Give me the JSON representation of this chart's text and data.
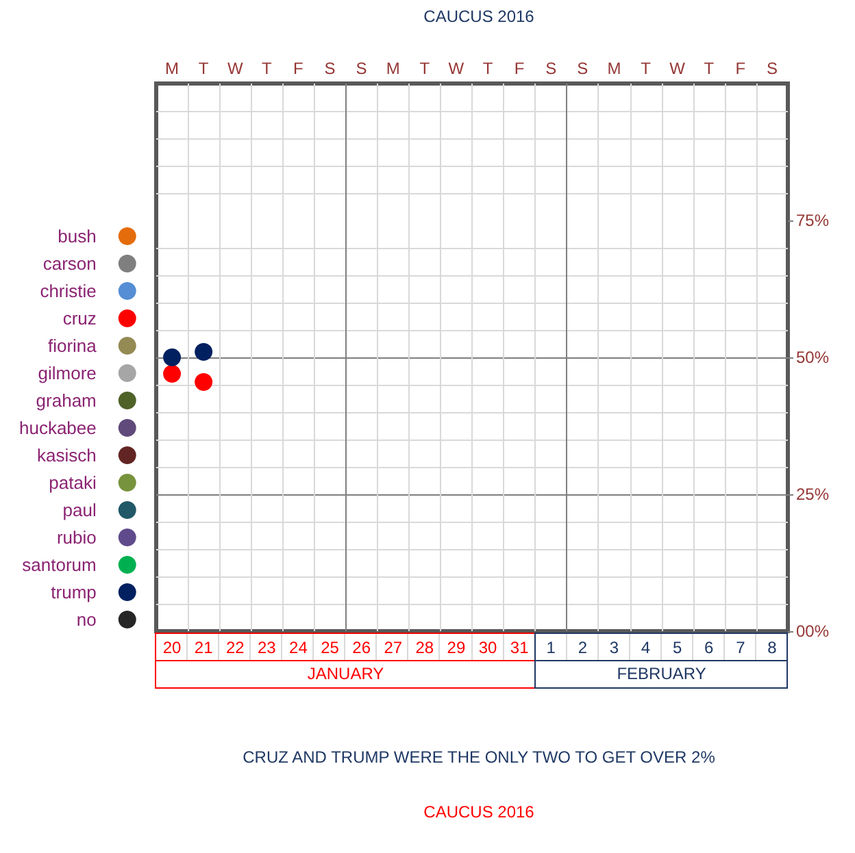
{
  "chart_data": {
    "type": "scatter",
    "title": "CAUCUS 2016",
    "x": [
      "2016-01-20",
      "2016-01-21"
    ],
    "series": [
      {
        "name": "bush",
        "color": "#e46c0a",
        "values": [
          null,
          null
        ]
      },
      {
        "name": "carson",
        "color": "#7f7f7f",
        "values": [
          null,
          null
        ]
      },
      {
        "name": "christie",
        "color": "#558ed5",
        "values": [
          null,
          null
        ]
      },
      {
        "name": "cruz",
        "color": "#ff0000",
        "values": [
          47,
          45.5
        ]
      },
      {
        "name": "fiorina",
        "color": "#948a54",
        "values": [
          null,
          null
        ]
      },
      {
        "name": "gilmore",
        "color": "#a6a6a6",
        "values": [
          null,
          null
        ]
      },
      {
        "name": "graham",
        "color": "#4f6228",
        "values": [
          null,
          null
        ]
      },
      {
        "name": "huckabee",
        "color": "#604a7b",
        "values": [
          null,
          null
        ]
      },
      {
        "name": "kasisch",
        "color": "#632523",
        "values": [
          null,
          null
        ]
      },
      {
        "name": "pataki",
        "color": "#77933c",
        "values": [
          null,
          null
        ]
      },
      {
        "name": "paul",
        "color": "#215968",
        "values": [
          null,
          null
        ]
      },
      {
        "name": "rubio",
        "color": "#5f4b8b",
        "values": [
          null,
          null
        ]
      },
      {
        "name": "santorum",
        "color": "#00b050",
        "values": [
          null,
          null
        ]
      },
      {
        "name": "trump",
        "color": "#002060",
        "values": [
          50,
          51
        ]
      },
      {
        "name": "no",
        "color": "#262626",
        "values": [
          null,
          null
        ]
      }
    ],
    "xlim": [
      "2016-01-19T12:00",
      "2016-02-08T12:00"
    ],
    "xticks": [
      {
        "value": "2016-01-20",
        "label": "20"
      },
      {
        "value": "2016-01-21",
        "label": "21"
      },
      {
        "value": "2016-01-22",
        "label": "22"
      },
      {
        "value": "2016-01-23",
        "label": "23"
      },
      {
        "value": "2016-01-24",
        "label": "24"
      },
      {
        "value": "2016-01-25",
        "label": "25"
      },
      {
        "value": "2016-01-26",
        "label": "26"
      },
      {
        "value": "2016-01-27",
        "label": "27"
      },
      {
        "value": "2016-01-28",
        "label": "28"
      },
      {
        "value": "2016-01-29",
        "label": "29"
      },
      {
        "value": "2016-01-30",
        "label": "30"
      },
      {
        "value": "2016-01-31",
        "label": "31"
      },
      {
        "value": "2016-02-01",
        "label": "1"
      },
      {
        "value": "2016-02-02",
        "label": "2"
      },
      {
        "value": "2016-02-03",
        "label": "3"
      },
      {
        "value": "2016-02-04",
        "label": "4"
      },
      {
        "value": "2016-02-05",
        "label": "5"
      },
      {
        "value": "2016-02-06",
        "label": "6"
      },
      {
        "value": "2016-02-07",
        "label": "7"
      },
      {
        "value": "2016-02-08",
        "label": "8"
      }
    ],
    "ylim": [
      0,
      100
    ],
    "yticks": [
      {
        "value": 0,
        "label": "00%"
      },
      {
        "value": 25,
        "label": "25%"
      },
      {
        "value": 50,
        "label": "50%"
      },
      {
        "value": 75,
        "label": "75%"
      }
    ],
    "ref_lines": [
      {
        "axis": "x",
        "value": "2016-01-25T12:00",
        "color": "#7f7f7f"
      },
      {
        "axis": "x",
        "value": "2016-02-01T12:00",
        "color": "#7f7f7f"
      }
    ],
    "annotations": [
      "M",
      "T",
      "W",
      "T",
      "F",
      "S",
      "S",
      "M",
      "T",
      "W",
      "T",
      "F",
      "S",
      "S",
      "M",
      "T",
      "W",
      "T",
      "F",
      "S",
      "JANUARY",
      "FEBRUARY",
      "CRUZ AND TRUMP WERE THE ONLY TWO TO GET OVER 2%",
      "CAUCUS 2016"
    ],
    "grid": true,
    "legend": "left",
    "marker": "circle"
  }
}
